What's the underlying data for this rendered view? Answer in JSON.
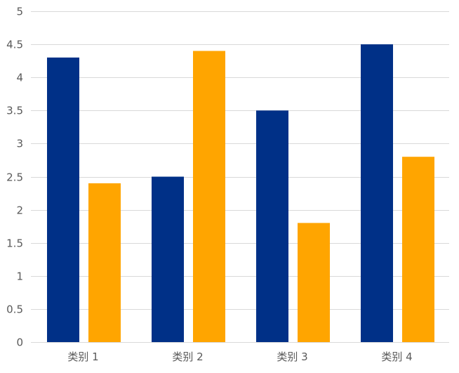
{
  "chart_data": {
    "type": "bar",
    "title": "",
    "xlabel": "",
    "ylabel": "",
    "categories": [
      "类别 1",
      "类别 2",
      "类别 3",
      "类别 4"
    ],
    "series": [
      {
        "values": [
          4.3,
          2.5,
          3.5,
          4.5
        ],
        "color": "#003087"
      },
      {
        "values": [
          2.4,
          4.4,
          1.8,
          2.8
        ],
        "color": "#FFA500"
      }
    ],
    "ylim": [
      0,
      5
    ],
    "yticks": [
      "0",
      "0.5",
      "1",
      "1.5",
      "2",
      "2.5",
      "3",
      "3.5",
      "4",
      "4.5",
      "5"
    ],
    "grid": true,
    "legend": "none"
  }
}
